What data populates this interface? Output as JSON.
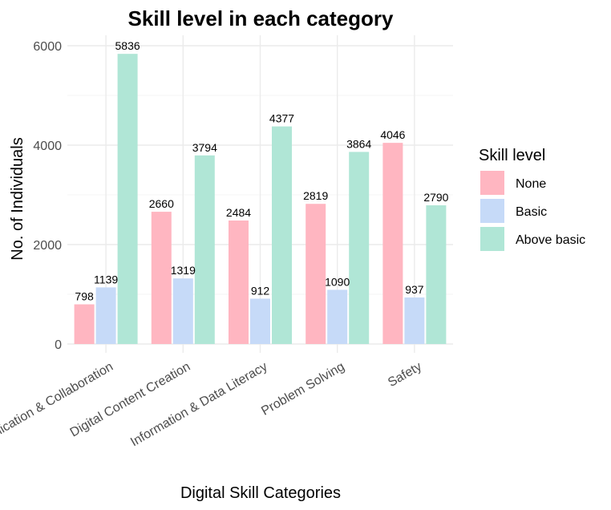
{
  "chart_data": {
    "type": "bar",
    "title": "Skill level in each category",
    "xlabel": "Digital Skill Categories",
    "ylabel": "No. of Individuals",
    "categories": [
      "Communication & Collaboration",
      "Digital Content Creation",
      "Information & Data Literacy",
      "Problem Solving",
      "Safety"
    ],
    "series": [
      {
        "name": "None",
        "color": "#ffb6c1",
        "values": [
          798,
          2660,
          2484,
          2819,
          4046
        ]
      },
      {
        "name": "Basic",
        "color": "#c6daf8",
        "values": [
          1139,
          1319,
          912,
          1090,
          937
        ]
      },
      {
        "name": "Above basic",
        "color": "#b0e6d6",
        "values": [
          5836,
          3794,
          4377,
          3864,
          2790
        ]
      }
    ],
    "ylim": [
      0,
      6400
    ],
    "yticks": [
      0,
      2000,
      4000,
      6000
    ],
    "grid": true,
    "legend": {
      "title": "Skill level",
      "position": "right"
    }
  }
}
